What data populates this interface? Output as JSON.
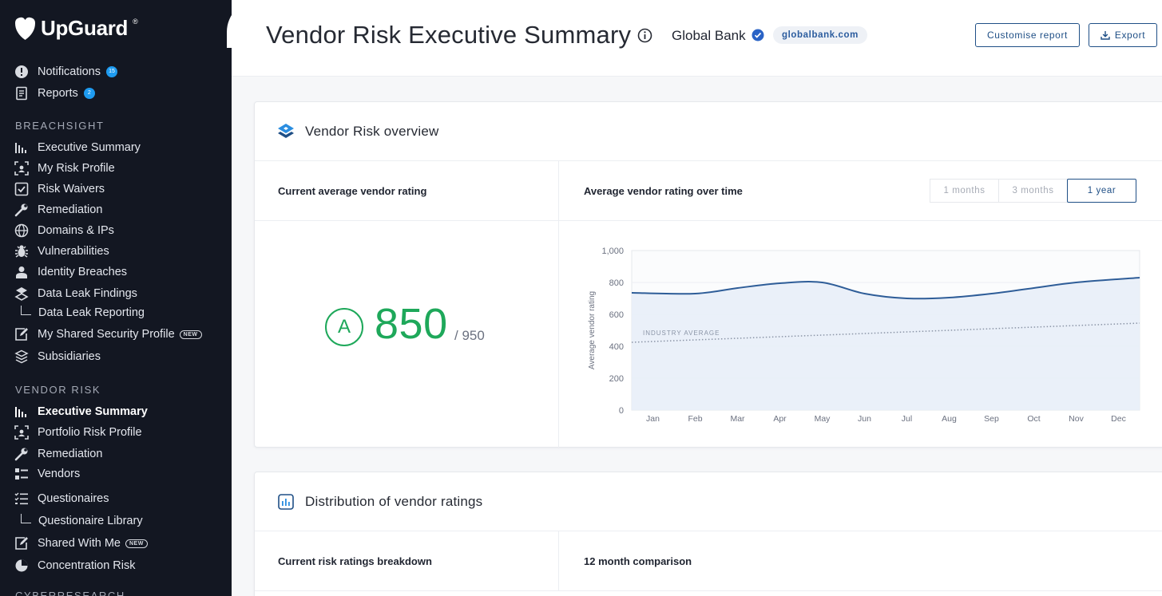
{
  "app": {
    "name": "UpGuard",
    "trademark": "®"
  },
  "sidebar": {
    "top_items": [
      {
        "label": "Notifications",
        "icon": "alert-circle-icon",
        "badge": "15"
      },
      {
        "label": "Reports",
        "icon": "document-icon",
        "badge": "2"
      }
    ],
    "breachsight": {
      "label": "BREACHSIGHT",
      "items": [
        {
          "label": "Executive Summary",
          "icon": "bar-chart-icon"
        },
        {
          "label": "My Risk Profile",
          "icon": "scan-frame-icon"
        },
        {
          "label": "Risk Waivers",
          "icon": "checkbox-icon"
        },
        {
          "label": "Remediation",
          "icon": "wrench-icon"
        },
        {
          "label": "Domains & IPs",
          "icon": "globe-icon"
        },
        {
          "label": "Vulnerabilities",
          "icon": "bug-icon"
        },
        {
          "label": "Identity Breaches",
          "icon": "user-card-icon"
        },
        {
          "label": "Data Leak Findings",
          "icon": "leak-icon"
        },
        {
          "label": "Data Leak Reporting",
          "icon": "sub-item-corner-icon"
        },
        {
          "label": "My Shared Security Profile",
          "icon": "edit-document-icon",
          "tag": "NEW"
        },
        {
          "label": "Subsidiaries",
          "icon": "layers-icon"
        }
      ]
    },
    "vendor_risk": {
      "label": "VENDOR RISK",
      "items": [
        {
          "label": "Executive Summary",
          "icon": "bar-chart-icon",
          "active": true
        },
        {
          "label": "Portfolio Risk Profile",
          "icon": "scan-frame-icon"
        },
        {
          "label": "Remediation",
          "icon": "wrench-icon"
        },
        {
          "label": "Vendors",
          "icon": "list-icon"
        },
        {
          "label": "Questionaires",
          "icon": "checklist-icon"
        },
        {
          "label": "Questionaire Library",
          "icon": "sub-item-corner-icon"
        },
        {
          "label": "Shared With Me",
          "icon": "edit-document-icon",
          "tag": "NEW"
        },
        {
          "label": "Concentration Risk",
          "icon": "pie-icon"
        }
      ]
    },
    "cut_off_section": "CYBERRESEARCH"
  },
  "header": {
    "title": "Vendor Risk Executive Summary",
    "org_name": "Global Bank",
    "domain": "globalbank.com",
    "customise_label": "Customise report",
    "export_label": "Export"
  },
  "overview": {
    "title": "Vendor Risk overview",
    "left_label": "Current average vendor rating",
    "right_label": "Average vendor rating over time",
    "ranges": [
      "1 months",
      "3 months",
      "1 year"
    ],
    "selected_range": "1 year",
    "grade": "A",
    "score": "850",
    "score_max": "/ 950"
  },
  "chart_data": {
    "type": "area",
    "x": [
      "Jan",
      "Feb",
      "Mar",
      "Apr",
      "May",
      "Jun",
      "Jul",
      "Aug",
      "Sep",
      "Oct",
      "Nov",
      "Dec"
    ],
    "series": [
      {
        "values": [
          735,
          730,
          765,
          795,
          800,
          730,
          700,
          705,
          730,
          765,
          800,
          830
        ]
      },
      {
        "name": "INDUSTRY AVERAGE",
        "values": [
          425,
          435,
          445,
          455,
          465,
          475,
          490,
          505,
          515,
          525,
          535,
          545
        ]
      }
    ],
    "ylabel": "Average vendor rating",
    "yticks": [
      "0",
      "200",
      "400",
      "600",
      "800",
      "1,000"
    ],
    "ylim": [
      0,
      1000
    ],
    "grid": true,
    "colors": {
      "line": "#2e5d98",
      "fill": "#e8eef8",
      "industry": "#8a94a6"
    }
  },
  "distribution": {
    "title": "Distribution of vendor ratings",
    "left_label": "Current risk ratings breakdown",
    "right_label": "12 month comparison"
  }
}
